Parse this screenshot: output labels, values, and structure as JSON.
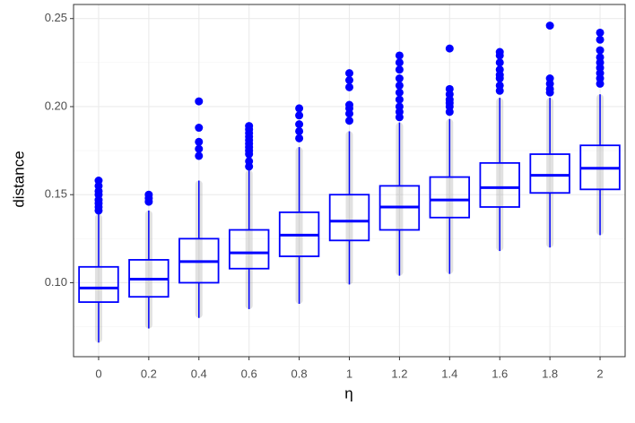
{
  "chart_data": {
    "type": "box",
    "x_label": "η",
    "y_label": "distance",
    "categories": [
      "0",
      "0.2",
      "0.4",
      "0.6",
      "0.8",
      "1",
      "1.2",
      "1.4",
      "1.6",
      "1.8",
      "2"
    ],
    "color": "#0000ff",
    "boxes": [
      {
        "whisker_low": 0.066,
        "q1": 0.089,
        "median": 0.097,
        "q3": 0.109,
        "whisker_high": 0.139,
        "outliers": [
          0.158,
          0.155,
          0.152,
          0.15,
          0.147,
          0.145,
          0.143,
          0.141
        ]
      },
      {
        "whisker_low": 0.074,
        "q1": 0.092,
        "median": 0.102,
        "q3": 0.113,
        "whisker_high": 0.141,
        "outliers": [
          0.15,
          0.148,
          0.146
        ]
      },
      {
        "whisker_low": 0.08,
        "q1": 0.1,
        "median": 0.112,
        "q3": 0.125,
        "whisker_high": 0.158,
        "outliers": [
          0.203,
          0.188,
          0.18,
          0.176,
          0.172
        ]
      },
      {
        "whisker_low": 0.085,
        "q1": 0.108,
        "median": 0.117,
        "q3": 0.13,
        "whisker_high": 0.164,
        "outliers": [
          0.189,
          0.187,
          0.185,
          0.183,
          0.181,
          0.179,
          0.177,
          0.175,
          0.173,
          0.169,
          0.166
        ]
      },
      {
        "whisker_low": 0.088,
        "q1": 0.115,
        "median": 0.127,
        "q3": 0.14,
        "whisker_high": 0.177,
        "outliers": [
          0.199,
          0.195,
          0.19,
          0.186,
          0.182
        ]
      },
      {
        "whisker_low": 0.099,
        "q1": 0.124,
        "median": 0.135,
        "q3": 0.15,
        "whisker_high": 0.186,
        "outliers": [
          0.219,
          0.215,
          0.211,
          0.201,
          0.199,
          0.196,
          0.192
        ]
      },
      {
        "whisker_low": 0.104,
        "q1": 0.13,
        "median": 0.143,
        "q3": 0.155,
        "whisker_high": 0.191,
        "outliers": [
          0.229,
          0.225,
          0.221,
          0.216,
          0.212,
          0.208,
          0.204,
          0.2,
          0.197,
          0.194
        ]
      },
      {
        "whisker_low": 0.105,
        "q1": 0.137,
        "median": 0.147,
        "q3": 0.16,
        "whisker_high": 0.193,
        "outliers": [
          0.233,
          0.21,
          0.207,
          0.204,
          0.202,
          0.2,
          0.197
        ]
      },
      {
        "whisker_low": 0.118,
        "q1": 0.143,
        "median": 0.154,
        "q3": 0.168,
        "whisker_high": 0.205,
        "outliers": [
          0.231,
          0.229,
          0.225,
          0.221,
          0.218,
          0.216,
          0.212,
          0.209
        ]
      },
      {
        "whisker_low": 0.12,
        "q1": 0.151,
        "median": 0.161,
        "q3": 0.173,
        "whisker_high": 0.205,
        "outliers": [
          0.246,
          0.216,
          0.213,
          0.21,
          0.208
        ]
      },
      {
        "whisker_low": 0.127,
        "q1": 0.153,
        "median": 0.165,
        "q3": 0.178,
        "whisker_high": 0.207,
        "outliers": [
          0.242,
          0.238,
          0.232,
          0.228,
          0.225,
          0.222,
          0.219,
          0.216,
          0.213
        ]
      }
    ],
    "ylim": [
      0.058,
      0.258
    ],
    "yticks": [
      {
        "value": 0.1,
        "label": "0.10"
      },
      0.15,
      {
        "value": 0.2,
        "label": "0.20"
      },
      0.25
    ],
    "grid": true
  }
}
